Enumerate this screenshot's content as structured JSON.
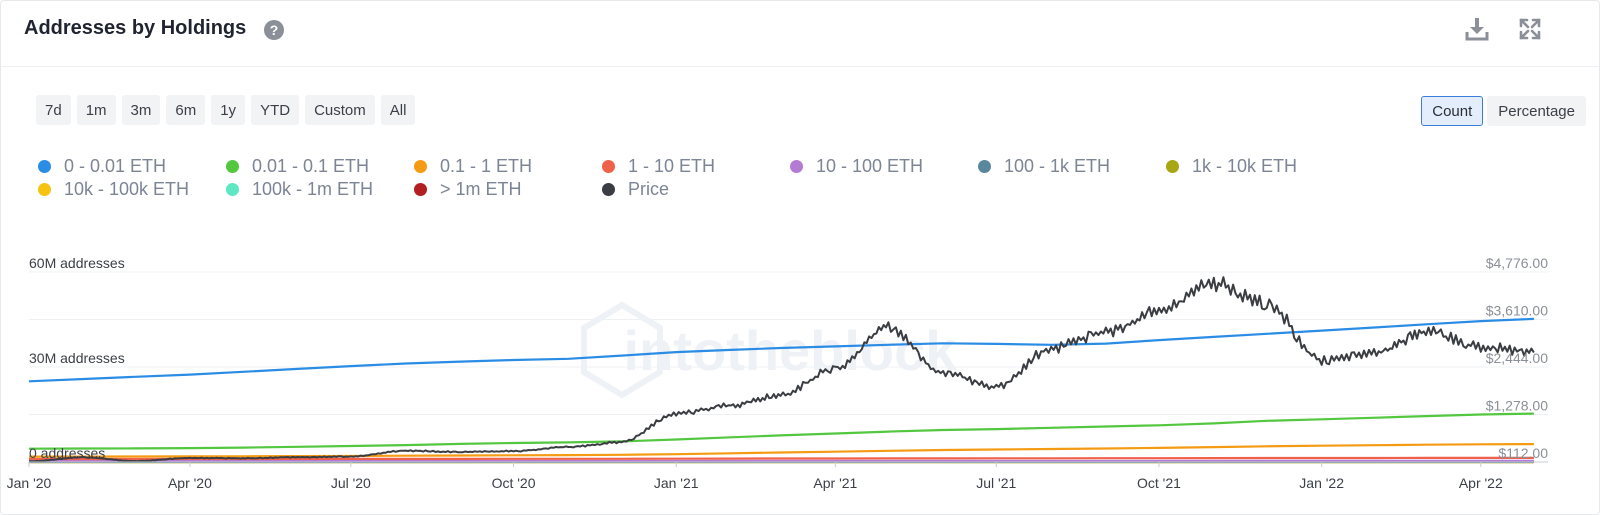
{
  "header": {
    "title": "Addresses by Holdings",
    "help_icon": "question-circle-icon",
    "download_icon": "download-icon",
    "fullscreen_icon": "expand-icon"
  },
  "range_buttons": [
    "7d",
    "1m",
    "3m",
    "6m",
    "1y",
    "YTD",
    "Custom",
    "All"
  ],
  "mode_buttons": [
    {
      "label": "Count",
      "active": true
    },
    {
      "label": "Percentage",
      "active": false
    }
  ],
  "watermark": "intotheblock",
  "chart_data": {
    "type": "line",
    "x_ticks": [
      "Jan '20",
      "Apr '20",
      "Jul '20",
      "Oct '20",
      "Jan '21",
      "Apr '21",
      "Jul '21",
      "Oct '21",
      "Jan '22",
      "Apr '22"
    ],
    "y_left_ticks": [
      "0 addresses",
      "30M addresses",
      "60M addresses"
    ],
    "y_left_range": [
      0,
      60000000
    ],
    "y_right_ticks": [
      "$112.00",
      "$1,278.00",
      "$2,444.00",
      "$3,610.00",
      "$4,776.00"
    ],
    "y_right_range": [
      112,
      4776
    ],
    "x": [
      "2020-01-01",
      "2020-02-01",
      "2020-03-01",
      "2020-04-01",
      "2020-05-01",
      "2020-06-01",
      "2020-07-01",
      "2020-08-01",
      "2020-09-01",
      "2020-10-01",
      "2020-11-01",
      "2020-12-01",
      "2021-01-01",
      "2021-02-01",
      "2021-03-01",
      "2021-04-01",
      "2021-05-01",
      "2021-06-01",
      "2021-07-01",
      "2021-08-01",
      "2021-09-01",
      "2021-10-01",
      "2021-11-01",
      "2021-12-01",
      "2022-01-01",
      "2022-02-01",
      "2022-03-01",
      "2022-04-01",
      "2022-05-01"
    ],
    "series": [
      {
        "name": "0 - 0.01 ETH",
        "color": "#2b8ce6",
        "axis": "left",
        "values": [
          25500000,
          26200000,
          26900000,
          27600000,
          28500000,
          29400000,
          30300000,
          31100000,
          31700000,
          32200000,
          32600000,
          33600000,
          34700000,
          35400000,
          36000000,
          36500000,
          37000000,
          37500000,
          37300000,
          37000000,
          37400000,
          38500000,
          39500000,
          40500000,
          41500000,
          42500000,
          43500000,
          44500000,
          45200000
        ]
      },
      {
        "name": "0.01 - 0.1 ETH",
        "color": "#52c73f",
        "axis": "left",
        "values": [
          4200000,
          4250000,
          4300000,
          4400000,
          4550000,
          4800000,
          5050000,
          5350000,
          5700000,
          6000000,
          6200000,
          6500000,
          7100000,
          7800000,
          8400000,
          9000000,
          9600000,
          10100000,
          10400000,
          10800000,
          11200000,
          11600000,
          12200000,
          13000000,
          13500000,
          14000000,
          14500000,
          15000000,
          15300000
        ]
      },
      {
        "name": "0.1 - 1 ETH",
        "color": "#f59a13",
        "axis": "left",
        "values": [
          1700000,
          1720000,
          1740000,
          1770000,
          1810000,
          1860000,
          1910000,
          1980000,
          2050000,
          2120000,
          2190000,
          2280000,
          2460000,
          2750000,
          3000000,
          3250000,
          3550000,
          3800000,
          3950000,
          4100000,
          4250000,
          4450000,
          4700000,
          4950000,
          5150000,
          5300000,
          5450000,
          5600000,
          5650000
        ]
      },
      {
        "name": "1 - 10 ETH",
        "color": "#f06149",
        "axis": "left",
        "values": [
          950000,
          955000,
          960000,
          965000,
          970000,
          975000,
          980000,
          985000,
          990000,
          995000,
          1000000,
          1010000,
          1030000,
          1060000,
          1090000,
          1110000,
          1130000,
          1150000,
          1160000,
          1170000,
          1190000,
          1210000,
          1230000,
          1250000,
          1260000,
          1270000,
          1280000,
          1290000,
          1300000
        ]
      },
      {
        "name": "10 - 100 ETH",
        "color": "#b47bd3",
        "axis": "left",
        "values": [
          300000,
          300000,
          300000,
          300000,
          300000,
          300000,
          300000,
          300000,
          300000,
          300000,
          300000,
          300000,
          305000,
          310000,
          312000,
          315000,
          318000,
          320000,
          322000,
          324000,
          326000,
          328000,
          330000,
          332000,
          334000,
          336000,
          338000,
          340000,
          342000
        ]
      },
      {
        "name": "100 - 1k ETH",
        "color": "#5b879e",
        "axis": "left",
        "values": [
          20000,
          20000,
          20000,
          20000,
          20000,
          20000,
          20000,
          20000,
          20000,
          20000,
          20000,
          20000,
          20000,
          20000,
          20000,
          20000,
          20000,
          20000,
          20000,
          20000,
          20000,
          20000,
          20000,
          20000,
          20000,
          20000,
          20000,
          20000,
          20000
        ]
      },
      {
        "name": "1k - 10k ETH",
        "color": "#a8a612",
        "axis": "left",
        "values": [
          1000,
          1000,
          1000,
          1000,
          1000,
          1000,
          1000,
          1000,
          1000,
          1000,
          1000,
          1000,
          1000,
          1000,
          1000,
          1000,
          1000,
          1000,
          1000,
          1000,
          1000,
          1000,
          1000,
          1000,
          1000,
          1000,
          1000,
          1000,
          1000
        ]
      },
      {
        "name": "10k - 100k ETH",
        "color": "#f7c313",
        "axis": "left",
        "values": [
          100,
          100,
          100,
          100,
          100,
          100,
          100,
          100,
          100,
          100,
          100,
          100,
          100,
          100,
          100,
          100,
          100,
          100,
          100,
          100,
          100,
          100,
          100,
          100,
          100,
          100,
          100,
          100,
          100
        ]
      },
      {
        "name": "100k - 1m ETH",
        "color": "#5de8c3",
        "axis": "left",
        "values": [
          10,
          10,
          10,
          10,
          10,
          10,
          10,
          10,
          10,
          10,
          10,
          10,
          10,
          10,
          10,
          10,
          10,
          10,
          10,
          10,
          10,
          10,
          10,
          10,
          10,
          10,
          10,
          10,
          10
        ]
      },
      {
        "name": "> 1m ETH",
        "color": "#b31e22",
        "axis": "left",
        "values": [
          1,
          1,
          1,
          1,
          1,
          1,
          1,
          1,
          1,
          1,
          1,
          1,
          1,
          1,
          1,
          1,
          1,
          1,
          1,
          1,
          1,
          1,
          1,
          1,
          1,
          1,
          1,
          1,
          1
        ]
      },
      {
        "name": "Price",
        "color": "#3a3d42",
        "axis": "right",
        "values": [
          130,
          225,
          135,
          210,
          205,
          230,
          245,
          390,
          360,
          380,
          480,
          600,
          1300,
          1500,
          1750,
          2400,
          3400,
          2300,
          1950,
          2900,
          3300,
          3800,
          4500,
          4000,
          2600,
          2800,
          3300,
          2950,
          2800
        ]
      }
    ],
    "legend_position": "top-left",
    "grid": true
  }
}
